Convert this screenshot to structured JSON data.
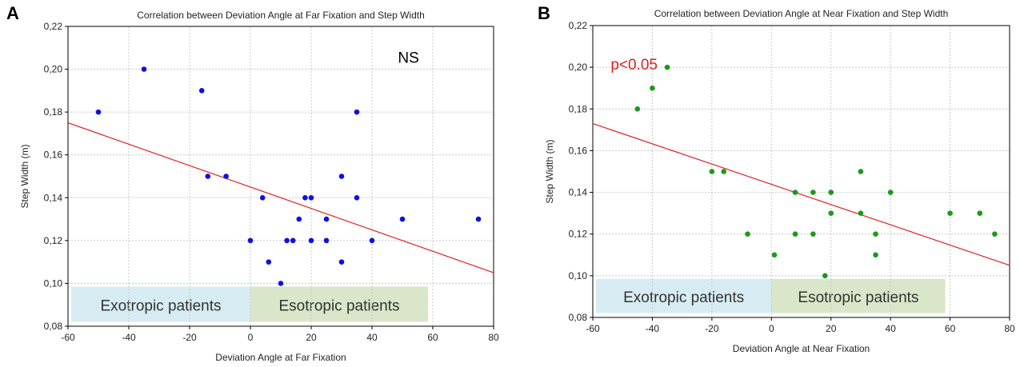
{
  "chart_data": [
    {
      "panel": "A",
      "type": "scatter",
      "title": "Correlation between Deviation Angle at Far Fixation and Step Width",
      "xlabel": "Deviation Angle at Far Fixation",
      "ylabel": "Step Width (m)",
      "xlim": [
        -60,
        80
      ],
      "ylim": [
        0.08,
        0.22
      ],
      "xticks": [
        "-60",
        "-40",
        "-20",
        "0",
        "20",
        "40",
        "60",
        "80"
      ],
      "yticks": [
        "0,08",
        "0,10",
        "0,12",
        "0,14",
        "0,16",
        "0,18",
        "0,20",
        "0,22"
      ],
      "x": [
        -50,
        -35,
        -16,
        -14,
        -8,
        0,
        4,
        6,
        10,
        12,
        14,
        16,
        18,
        20,
        20,
        25,
        25,
        30,
        30,
        35,
        35,
        40,
        50,
        75
      ],
      "y": [
        0.18,
        0.2,
        0.19,
        0.15,
        0.15,
        0.12,
        0.14,
        0.11,
        0.1,
        0.12,
        0.12,
        0.13,
        0.14,
        0.14,
        0.12,
        0.13,
        0.12,
        0.15,
        0.11,
        0.18,
        0.14,
        0.12,
        0.13,
        0.13
      ],
      "point_color": "#1010e0",
      "fit_line": {
        "x": [
          -60,
          80
        ],
        "y": [
          0.175,
          0.105
        ],
        "color": "#e02020"
      },
      "regions": [
        {
          "label": "Exotropic patients",
          "x": [
            -60,
            0
          ],
          "color": "#d6ecf2"
        },
        {
          "label": "Esotropic patients",
          "x": [
            0,
            60
          ],
          "color": "#d9e6c9"
        }
      ],
      "annotation": {
        "text": "NS",
        "color": "#000000"
      }
    },
    {
      "panel": "B",
      "type": "scatter",
      "title": "Correlation between Deviation Angle at Near Fixation and Step Width",
      "xlabel": "Deviation Angle at Near Fixation",
      "ylabel": "Step Width (m)",
      "xlim": [
        -60,
        80
      ],
      "ylim": [
        0.08,
        0.22
      ],
      "xticks": [
        "-60",
        "-40",
        "-20",
        "0",
        "20",
        "40",
        "60",
        "80"
      ],
      "yticks": [
        "0,08",
        "0,10",
        "0,12",
        "0,14",
        "0,16",
        "0,18",
        "0,20",
        "0,22"
      ],
      "x": [
        -45,
        -40,
        -35,
        -20,
        -16,
        -8,
        1,
        8,
        8,
        14,
        14,
        18,
        20,
        20,
        30,
        30,
        35,
        35,
        40,
        60,
        70,
        75
      ],
      "y": [
        0.18,
        0.19,
        0.2,
        0.15,
        0.15,
        0.12,
        0.11,
        0.14,
        0.12,
        0.14,
        0.12,
        0.1,
        0.14,
        0.13,
        0.15,
        0.13,
        0.12,
        0.11,
        0.14,
        0.13,
        0.13,
        0.12
      ],
      "point_color": "#1a9a1a",
      "fit_line": {
        "x": [
          -60,
          80
        ],
        "y": [
          0.173,
          0.105
        ],
        "color": "#e02020"
      },
      "regions": [
        {
          "label": "Exotropic patients",
          "x": [
            -60,
            0
          ],
          "color": "#d6ecf2"
        },
        {
          "label": "Esotropic patients",
          "x": [
            0,
            60
          ],
          "color": "#d9e6c9"
        }
      ],
      "annotation": {
        "text": "p<0.05",
        "color": "#e02020"
      }
    }
  ]
}
